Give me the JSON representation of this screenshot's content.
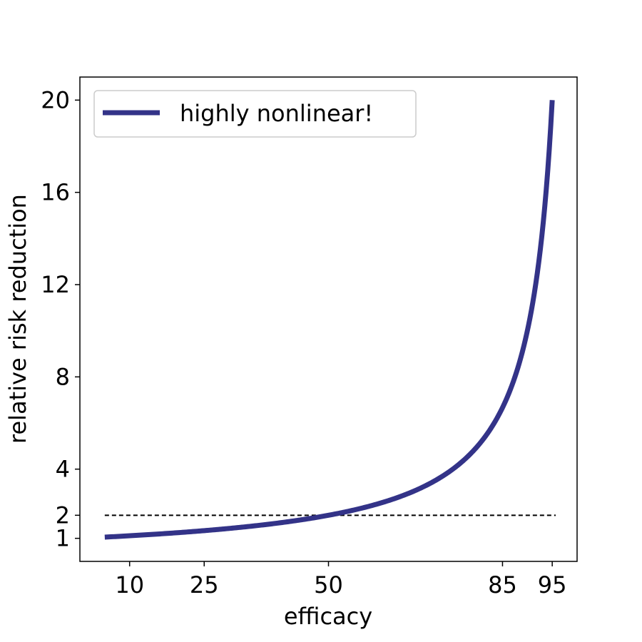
{
  "chart_data": {
    "type": "line",
    "xlabel": "efficacy",
    "ylabel": "relative risk reduction",
    "xlim": [
      0,
      100
    ],
    "ylim": [
      0,
      21
    ],
    "x_ticks": [
      10,
      25,
      50,
      85,
      95
    ],
    "x_tick_labels": [
      "10",
      "25",
      "50",
      "85",
      "95"
    ],
    "y_ticks": [
      1,
      2,
      4,
      8,
      12,
      16,
      20
    ],
    "y_tick_labels": [
      "1",
      "2",
      "4",
      "8",
      "12",
      "16",
      "20"
    ],
    "grid": false,
    "legend_position": "top-left",
    "series": [
      {
        "name": "highly nonlinear!",
        "color": "#333388",
        "style": "solid",
        "x": [
          5,
          10,
          15,
          20,
          25,
          30,
          35,
          40,
          45,
          50,
          55,
          60,
          65,
          70,
          75,
          80,
          85,
          88,
          90,
          92,
          93,
          94,
          95
        ],
        "y": [
          1.05,
          1.11,
          1.18,
          1.25,
          1.33,
          1.43,
          1.54,
          1.67,
          1.82,
          2.0,
          2.22,
          2.5,
          2.86,
          3.33,
          4.0,
          5.0,
          6.67,
          8.33,
          10.0,
          12.5,
          14.29,
          16.67,
          20.0
        ]
      }
    ],
    "reference_line": {
      "y": 2,
      "x_range": [
        5,
        100
      ],
      "color": "#000000",
      "style": "dashed"
    }
  }
}
